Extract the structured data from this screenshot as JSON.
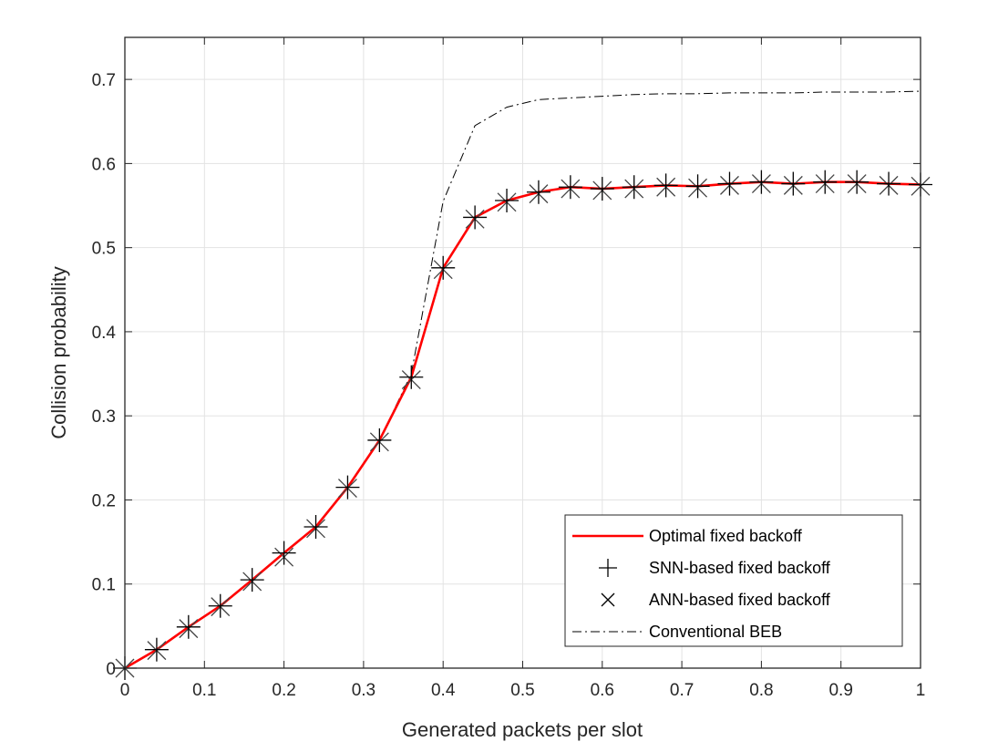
{
  "chart_data": {
    "type": "line",
    "title": "",
    "xlabel": "Generated packets per slot",
    "ylabel": "Collision probability",
    "xlim": [
      0,
      1
    ],
    "ylim": [
      0,
      0.75
    ],
    "x_ticks": [
      0,
      0.1,
      0.2,
      0.3,
      0.4,
      0.5,
      0.6,
      0.7,
      0.8,
      0.9,
      1
    ],
    "x_tick_labels": [
      "0",
      "0.1",
      "0.2",
      "0.3",
      "0.4",
      "0.5",
      "0.6",
      "0.7",
      "0.8",
      "0.9",
      "1"
    ],
    "y_ticks": [
      0,
      0.1,
      0.2,
      0.3,
      0.4,
      0.5,
      0.6,
      0.7
    ],
    "y_tick_labels": [
      "0",
      "0.1",
      "0.2",
      "0.3",
      "0.4",
      "0.5",
      "0.6",
      "0.7"
    ],
    "grid": true,
    "legend_position": "bottom-right",
    "series": [
      {
        "name": "Optimal fixed backoff",
        "style": "solid-line",
        "color": "#ff0000",
        "x": [
          0,
          0.04,
          0.08,
          0.12,
          0.16,
          0.2,
          0.24,
          0.28,
          0.32,
          0.36,
          0.4,
          0.44,
          0.48,
          0.52,
          0.56,
          0.6,
          0.64,
          0.68,
          0.72,
          0.76,
          0.8,
          0.84,
          0.88,
          0.92,
          0.96,
          1.0
        ],
        "y": [
          0.0,
          0.022,
          0.049,
          0.074,
          0.105,
          0.137,
          0.168,
          0.215,
          0.271,
          0.346,
          0.476,
          0.536,
          0.556,
          0.566,
          0.572,
          0.57,
          0.572,
          0.574,
          0.573,
          0.576,
          0.578,
          0.576,
          0.578,
          0.578,
          0.576,
          0.575
        ]
      },
      {
        "name": "SNN-based fixed backoff",
        "style": "plus-marker",
        "color": "#000000",
        "x": [
          0,
          0.04,
          0.08,
          0.12,
          0.16,
          0.2,
          0.24,
          0.28,
          0.32,
          0.36,
          0.4,
          0.44,
          0.48,
          0.52,
          0.56,
          0.6,
          0.64,
          0.68,
          0.72,
          0.76,
          0.8,
          0.84,
          0.88,
          0.92,
          0.96,
          1.0
        ],
        "y": [
          0.0,
          0.022,
          0.049,
          0.074,
          0.105,
          0.137,
          0.168,
          0.215,
          0.271,
          0.346,
          0.476,
          0.536,
          0.556,
          0.566,
          0.572,
          0.57,
          0.572,
          0.574,
          0.573,
          0.576,
          0.578,
          0.576,
          0.578,
          0.578,
          0.576,
          0.575
        ]
      },
      {
        "name": "ANN-based fixed backoff",
        "style": "x-marker",
        "color": "#000000",
        "x": [
          0,
          0.04,
          0.08,
          0.12,
          0.16,
          0.2,
          0.24,
          0.28,
          0.32,
          0.36,
          0.4,
          0.44,
          0.48,
          0.52,
          0.56,
          0.6,
          0.64,
          0.68,
          0.72,
          0.76,
          0.8,
          0.84,
          0.88,
          0.92,
          0.96,
          1.0
        ],
        "y": [
          0.0,
          0.021,
          0.047,
          0.073,
          0.103,
          0.132,
          0.166,
          0.214,
          0.269,
          0.343,
          0.474,
          0.534,
          0.554,
          0.564,
          0.57,
          0.568,
          0.57,
          0.572,
          0.571,
          0.574,
          0.576,
          0.574,
          0.576,
          0.576,
          0.574,
          0.573
        ]
      },
      {
        "name": "Conventional BEB",
        "style": "dash-dot-line",
        "color": "#000000",
        "x": [
          0,
          0.04,
          0.08,
          0.12,
          0.16,
          0.2,
          0.24,
          0.28,
          0.32,
          0.36,
          0.4,
          0.44,
          0.48,
          0.52,
          0.56,
          0.6,
          0.64,
          0.68,
          0.72,
          0.76,
          0.8,
          0.84,
          0.88,
          0.92,
          0.96,
          1.0
        ],
        "y": [
          0.0,
          0.022,
          0.049,
          0.074,
          0.105,
          0.137,
          0.168,
          0.215,
          0.271,
          0.35,
          0.555,
          0.645,
          0.667,
          0.676,
          0.678,
          0.68,
          0.682,
          0.683,
          0.683,
          0.684,
          0.684,
          0.684,
          0.685,
          0.685,
          0.685,
          0.686
        ]
      }
    ]
  }
}
